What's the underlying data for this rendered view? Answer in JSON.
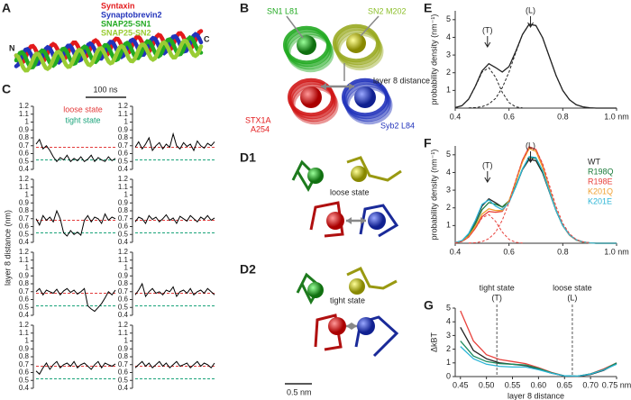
{
  "panels": {
    "A": {
      "label": "A",
      "n_terminus": "N",
      "c_terminus": "C",
      "legend": [
        {
          "text": "Syntaxin",
          "color": "#e31a1c"
        },
        {
          "text": "Synaptobrevin2",
          "color": "#2233bb"
        },
        {
          "text": "SNAP25-SN1",
          "color": "#22aa22"
        },
        {
          "text": "SNAP25-SN2",
          "color": "#99cc33"
        }
      ]
    },
    "B": {
      "label": "B",
      "sn1": "SN1 L81",
      "sn2": "SN2 M202",
      "distance": "layer 8 distance",
      "stx": [
        "STX1A",
        "A254"
      ],
      "syb": "Syb2 L84"
    },
    "D1": {
      "label": "D1",
      "state": "loose state"
    },
    "D2": {
      "label": "D2",
      "state": "tight state",
      "scalebar": "0.5 nm"
    }
  },
  "chart_data": [
    {
      "type": "trace-grid",
      "label": "C",
      "ylabel": "layer 8 distance (nm)",
      "scalebar": "100 ns",
      "ylim": [
        0.4,
        1.2
      ],
      "yticks": [
        0.4,
        0.5,
        0.6,
        0.7,
        0.8,
        0.9,
        1.0,
        1.1,
        1.2
      ],
      "color": "#000",
      "reference_lines": [
        {
          "name": "loose state",
          "value": 0.68,
          "color": "#e33b3b"
        },
        {
          "name": "tight state",
          "value": 0.52,
          "color": "#1aa37a"
        }
      ],
      "panels": [
        {
          "values": [
            0.72,
            0.78,
            0.66,
            0.7,
            0.64,
            0.56,
            0.5,
            0.55,
            0.52,
            0.58,
            0.5,
            0.54,
            0.51,
            0.56,
            0.5,
            0.53,
            0.58,
            0.5,
            0.55,
            0.52,
            0.5,
            0.56,
            0.51,
            0.54
          ]
        },
        {
          "values": [
            0.68,
            0.75,
            0.66,
            0.72,
            0.8,
            0.64,
            0.7,
            0.74,
            0.66,
            0.72,
            0.68,
            0.85,
            0.7,
            0.66,
            0.74,
            0.69,
            0.72,
            0.64,
            0.76,
            0.7,
            0.67,
            0.73,
            0.7,
            0.75
          ]
        },
        {
          "values": [
            0.7,
            0.62,
            0.74,
            0.68,
            0.72,
            0.66,
            0.8,
            0.7,
            0.52,
            0.48,
            0.55,
            0.5,
            0.53,
            0.49,
            0.68,
            0.74,
            0.66,
            0.72,
            0.7,
            0.64,
            0.76,
            0.68,
            0.72,
            0.7
          ]
        },
        {
          "values": [
            0.66,
            0.72,
            0.7,
            0.64,
            0.74,
            0.69,
            0.72,
            0.66,
            0.7,
            0.75,
            0.68,
            0.71,
            0.64,
            0.73,
            0.7,
            0.67,
            0.74,
            0.7,
            0.66,
            0.72,
            0.69,
            0.74,
            0.68,
            0.71
          ]
        },
        {
          "values": [
            0.7,
            0.74,
            0.66,
            0.72,
            0.7,
            0.68,
            0.73,
            0.66,
            0.71,
            0.74,
            0.69,
            0.72,
            0.67,
            0.7,
            0.74,
            0.52,
            0.48,
            0.45,
            0.5,
            0.55,
            0.62,
            0.7,
            0.66,
            0.72
          ]
        },
        {
          "values": [
            0.66,
            0.72,
            0.8,
            0.64,
            0.7,
            0.74,
            0.68,
            0.7,
            0.66,
            0.72,
            0.7,
            0.76,
            0.64,
            0.7,
            0.72,
            0.68,
            0.74,
            0.66,
            0.7,
            0.72,
            0.68,
            0.74,
            0.7,
            0.66
          ]
        },
        {
          "values": [
            0.62,
            0.58,
            0.66,
            0.72,
            0.64,
            0.7,
            0.74,
            0.66,
            0.7,
            0.72,
            0.68,
            0.74,
            0.66,
            0.7,
            0.72,
            0.68,
            0.64,
            0.7,
            0.74,
            0.66,
            0.72,
            0.7,
            0.68,
            0.71
          ]
        },
        {
          "values": [
            0.66,
            0.7,
            0.74,
            0.68,
            0.72,
            0.66,
            0.7,
            0.74,
            0.68,
            0.72,
            0.66,
            0.7,
            0.74,
            0.68,
            0.7,
            0.72,
            0.66,
            0.7,
            0.74,
            0.68,
            0.72,
            0.7,
            0.66,
            0.72
          ]
        }
      ]
    },
    {
      "type": "line",
      "label": "E",
      "ylabel": "probability density (nm⁻¹)",
      "xlim": [
        0.4,
        1.0
      ],
      "ylim": [
        0,
        5.5
      ],
      "xticks": [
        0.4,
        0.6,
        0.8,
        {
          "value": 1.0,
          "label": "1.0 nm"
        }
      ],
      "yticks": [
        1,
        2,
        3,
        4,
        5
      ],
      "x": [
        0.4,
        0.425,
        0.45,
        0.475,
        0.5,
        0.525,
        0.55,
        0.575,
        0.6,
        0.625,
        0.65,
        0.675,
        0.7,
        0.725,
        0.75,
        0.775,
        0.8,
        0.825,
        0.85,
        0.875,
        0.9,
        0.925,
        0.95,
        0.975,
        1.0
      ],
      "annotations": [
        {
          "text": "(T)",
          "x": 0.52
        },
        {
          "text": "(L)",
          "x": 0.68
        }
      ],
      "series": [
        {
          "color": "#222",
          "values": [
            0.03,
            0.14,
            0.51,
            1.25,
            2.11,
            2.51,
            2.29,
            2.04,
            2.35,
            3.2,
            4.16,
            4.74,
            4.67,
            3.97,
            2.91,
            1.84,
            1.0,
            0.47,
            0.19,
            0.07,
            0.02,
            0,
            0,
            0,
            0
          ]
        },
        {
          "color": "#222",
          "dash": true,
          "values": [
            0.03,
            0.14,
            0.5,
            1.22,
            2.03,
            2.28,
            1.74,
            0.89,
            0.31,
            0.07,
            0.01,
            null,
            null,
            null,
            null,
            null,
            null,
            null,
            null,
            null,
            null,
            null,
            null,
            null,
            null
          ]
        },
        {
          "color": "#222",
          "dash": true,
          "values": [
            null,
            null,
            0.01,
            0.03,
            0.08,
            0.23,
            0.55,
            1.15,
            2.04,
            3.13,
            4.15,
            4.74,
            4.67,
            3.97,
            2.91,
            1.84,
            1.0,
            0.47,
            0.19,
            0.07,
            0.02,
            null,
            null,
            null,
            null
          ]
        }
      ]
    },
    {
      "type": "line",
      "label": "F",
      "ylabel": "probability density (nm⁻¹)",
      "xlim": [
        0.4,
        1.0
      ],
      "ylim": [
        0,
        5.5
      ],
      "xticks": [
        0.4,
        0.6,
        0.8,
        {
          "value": 1.0,
          "label": "1.0 nm"
        }
      ],
      "yticks": [
        1,
        2,
        3,
        4,
        5
      ],
      "x": [
        0.4,
        0.425,
        0.45,
        0.475,
        0.5,
        0.525,
        0.55,
        0.575,
        0.6,
        0.625,
        0.65,
        0.675,
        0.7,
        0.725,
        0.75,
        0.775,
        0.8,
        0.825,
        0.85,
        0.875,
        0.9,
        0.925,
        0.95,
        0.975,
        1.0
      ],
      "annotations": [
        {
          "text": "(T)",
          "x": 0.52
        },
        {
          "text": "(L)",
          "x": 0.68
        }
      ],
      "series": [
        {
          "name": "WT",
          "color": "#222",
          "values": [
            0.03,
            0.14,
            0.51,
            1.25,
            2.11,
            2.51,
            2.29,
            2.04,
            2.35,
            3.2,
            4.16,
            4.74,
            4.67,
            3.97,
            2.91,
            1.84,
            1.0,
            0.47,
            0.19,
            0.07,
            0.02,
            0,
            0,
            0,
            0
          ]
        },
        {
          "name": "R198Q",
          "color": "#1b7a3a",
          "values": [
            0.03,
            0.12,
            0.45,
            1.1,
            1.9,
            2.3,
            2.2,
            2.05,
            2.4,
            3.25,
            4.2,
            4.85,
            4.8,
            4.05,
            2.95,
            1.85,
            1.0,
            0.47,
            0.19,
            0.07,
            0.02,
            0,
            0,
            0,
            0
          ]
        },
        {
          "name": "R198E",
          "color": "#e8413c",
          "values": [
            0.02,
            0.1,
            0.35,
            0.85,
            1.5,
            1.8,
            1.75,
            1.8,
            2.4,
            3.5,
            4.7,
            5.45,
            5.3,
            4.4,
            3.1,
            1.9,
            1.0,
            0.45,
            0.18,
            0.06,
            0.02,
            0,
            0,
            0,
            0
          ]
        },
        {
          "name": "K201Q",
          "color": "#f0a030",
          "values": [
            0.02,
            0.11,
            0.4,
            0.95,
            1.65,
            1.95,
            1.85,
            1.85,
            2.4,
            3.45,
            4.6,
            5.35,
            5.2,
            4.3,
            3.05,
            1.88,
            1.0,
            0.46,
            0.18,
            0.06,
            0.02,
            0,
            0,
            0,
            0
          ]
        },
        {
          "name": "K201E",
          "color": "#2bb5d6",
          "values": [
            0.03,
            0.15,
            0.55,
            1.3,
            2.2,
            2.45,
            2.1,
            1.9,
            2.3,
            3.2,
            4.2,
            4.9,
            4.85,
            4.1,
            2.95,
            1.85,
            1.0,
            0.47,
            0.19,
            0.07,
            0.02,
            0,
            0,
            0,
            0
          ]
        },
        {
          "color": "#e8413c",
          "dash": true,
          "values": [
            0.02,
            0.1,
            0.35,
            0.84,
            1.44,
            1.62,
            1.24,
            0.63,
            0.22,
            0.05,
            0.01,
            null,
            null,
            null,
            null,
            null,
            null,
            null,
            null,
            null,
            null,
            null,
            null,
            null,
            null
          ]
        },
        {
          "color": "#e8413c",
          "dash": true,
          "values": [
            null,
            null,
            0.01,
            0.03,
            0.09,
            0.26,
            0.62,
            1.3,
            2.3,
            3.55,
            4.7,
            5.4,
            5.3,
            4.5,
            3.3,
            2.08,
            1.13,
            0.53,
            0.21,
            0.08,
            0.02,
            null,
            null,
            null,
            null
          ]
        }
      ]
    },
    {
      "type": "line",
      "label": "G",
      "ylabel": "ΔkBT",
      "xlabel": "layer 8 distance",
      "xlim": [
        0.44,
        0.75
      ],
      "ylim": [
        0,
        5
      ],
      "xticks": [
        0.45,
        {
          "value": 0.5,
          "label": "0.50"
        },
        0.55,
        {
          "value": 0.6,
          "label": "0.60"
        },
        0.65,
        {
          "value": 0.7,
          "label": "0.70"
        },
        {
          "value": 0.75,
          "label": "0.75 nm"
        }
      ],
      "yticks": [
        0,
        1,
        2,
        3,
        4,
        5
      ],
      "x": [
        0.45,
        0.475,
        0.5,
        0.525,
        0.55,
        0.575,
        0.6,
        0.625,
        0.65,
        0.675,
        0.7,
        0.725,
        0.75
      ],
      "annotations": [
        {
          "text": "tight state",
          "sub": "(T)",
          "x": 0.52
        },
        {
          "text": "loose state",
          "sub": "(L)",
          "x": 0.665
        }
      ],
      "series": [
        {
          "color": "#e8413c",
          "values": [
            4.8,
            2.6,
            1.6,
            1.25,
            1.1,
            0.95,
            0.65,
            0.3,
            0.05,
            0.02,
            0.2,
            0.55,
            1.0
          ]
        },
        {
          "color": "#222",
          "values": [
            3.6,
            1.9,
            1.3,
            1.0,
            0.9,
            0.8,
            0.55,
            0.25,
            0.05,
            0.02,
            0.15,
            0.45,
            0.95
          ]
        },
        {
          "color": "#1b8a5a",
          "values": [
            2.6,
            1.5,
            1.1,
            0.95,
            0.9,
            0.85,
            0.6,
            0.28,
            0.05,
            0.03,
            0.2,
            0.5,
            1.0
          ]
        },
        {
          "color": "#2bb5d6",
          "values": [
            2.2,
            1.3,
            0.9,
            0.75,
            0.7,
            0.7,
            0.5,
            0.25,
            0.05,
            0.03,
            0.18,
            0.48,
            0.9
          ]
        }
      ]
    }
  ]
}
